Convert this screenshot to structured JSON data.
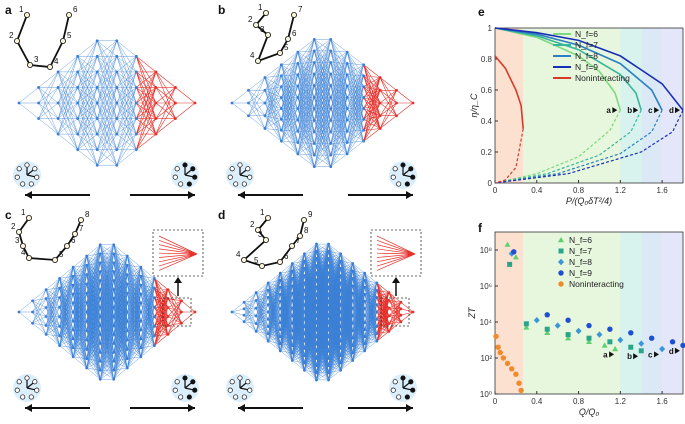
{
  "panels": {
    "a": {
      "label": "a",
      "nodes": [
        "1",
        "2",
        "3",
        "4",
        "5",
        "6"
      ]
    },
    "b": {
      "label": "b",
      "nodes": [
        "1",
        "2",
        "3",
        "4",
        "5",
        "6",
        "7"
      ]
    },
    "c": {
      "label": "c",
      "nodes": [
        "1",
        "2",
        "3",
        "4",
        "5",
        "6",
        "7",
        "8"
      ]
    },
    "d": {
      "label": "d",
      "nodes": [
        "1",
        "2",
        "3",
        "4",
        "5",
        "6",
        "7",
        "8",
        "9"
      ]
    }
  },
  "colors": {
    "network": "#3a7fd5",
    "red": "#e8302a",
    "bg_light": "#dbeefb"
  },
  "chart_data": [
    {
      "panel": "e",
      "type": "line",
      "xlabel": "P/(Q₀δT²/4)",
      "ylabel": "η/η_C",
      "xlim": [
        0,
        1.8
      ],
      "ylim": [
        0,
        1.0
      ],
      "xticks": [
        "0",
        "0.4",
        "0.8",
        "1.2",
        "1.6"
      ],
      "yticks": [
        "0",
        "0.2",
        "0.4",
        "0.6",
        "0.8",
        "1"
      ],
      "series": [
        {
          "name": "N_f=6",
          "color": "#7ed87e",
          "pmax": 1.2,
          "upper": [
            [
              0,
              1.0
            ],
            [
              0.4,
              0.94
            ],
            [
              0.8,
              0.82
            ],
            [
              1.0,
              0.72
            ],
            [
              1.15,
              0.58
            ],
            [
              1.2,
              0.47
            ]
          ],
          "lower": [
            [
              1.2,
              0.47
            ],
            [
              1.1,
              0.34
            ],
            [
              0.8,
              0.17
            ],
            [
              0.4,
              0.06
            ],
            [
              0,
              0.0
            ]
          ]
        },
        {
          "name": "N_f=7",
          "color": "#38b59a",
          "pmax": 1.4,
          "upper": [
            [
              0,
              1.0
            ],
            [
              0.4,
              0.95
            ],
            [
              0.8,
              0.86
            ],
            [
              1.2,
              0.7
            ],
            [
              1.35,
              0.58
            ],
            [
              1.4,
              0.47
            ]
          ],
          "lower": [
            [
              1.4,
              0.47
            ],
            [
              1.3,
              0.33
            ],
            [
              1.0,
              0.18
            ],
            [
              0.5,
              0.06
            ],
            [
              0,
              0.0
            ]
          ]
        },
        {
          "name": "N_f=8",
          "color": "#2c7fc0",
          "pmax": 1.6,
          "upper": [
            [
              0,
              1.0
            ],
            [
              0.4,
              0.96
            ],
            [
              0.8,
              0.89
            ],
            [
              1.2,
              0.77
            ],
            [
              1.5,
              0.6
            ],
            [
              1.6,
              0.47
            ]
          ],
          "lower": [
            [
              1.6,
              0.47
            ],
            [
              1.5,
              0.33
            ],
            [
              1.2,
              0.19
            ],
            [
              0.6,
              0.06
            ],
            [
              0,
              0.0
            ]
          ]
        },
        {
          "name": "N_f=9",
          "color": "#1a2fb8",
          "pmax": 1.8,
          "upper": [
            [
              0,
              1.0
            ],
            [
              0.4,
              0.97
            ],
            [
              0.8,
              0.92
            ],
            [
              1.2,
              0.82
            ],
            [
              1.6,
              0.64
            ],
            [
              1.8,
              0.47
            ]
          ],
          "lower": [
            [
              1.8,
              0.47
            ],
            [
              1.7,
              0.33
            ],
            [
              1.4,
              0.2
            ],
            [
              0.7,
              0.06
            ],
            [
              0,
              0.0
            ]
          ]
        },
        {
          "name": "Noninteracting",
          "color": "#d83a2a",
          "pmax": 0.27,
          "upper": [
            [
              0,
              0.82
            ],
            [
              0.1,
              0.74
            ],
            [
              0.2,
              0.6
            ],
            [
              0.25,
              0.5
            ],
            [
              0.27,
              0.35
            ]
          ],
          "lower": [
            [
              0.27,
              0.35
            ],
            [
              0.2,
              0.1
            ],
            [
              0.1,
              0.02
            ],
            [
              0,
              0.0
            ]
          ]
        }
      ],
      "markers": [
        {
          "label": "a",
          "x": 1.2,
          "y": 0.47
        },
        {
          "label": "b",
          "x": 1.4,
          "y": 0.47
        },
        {
          "label": "c",
          "x": 1.6,
          "y": 0.47
        },
        {
          "label": "d",
          "x": 1.8,
          "y": 0.47
        }
      ]
    },
    {
      "panel": "f",
      "type": "scatter",
      "xlabel": "Q/Q₀",
      "ylabel": "ZT",
      "xlim": [
        0,
        1.8
      ],
      "ylim_log10": [
        0,
        9
      ],
      "xticks": [
        "0",
        "0.4",
        "0.8",
        "1.2",
        "1.6"
      ],
      "yticks": [
        "10⁰",
        "10²",
        "10⁴",
        "10⁶",
        "10⁸"
      ],
      "series": [
        {
          "name": "N_f=6",
          "color": "#5fcf6f",
          "marker": "triangle",
          "points": [
            [
              0.12,
              8.3
            ],
            [
              0.2,
              7.6
            ],
            [
              0.3,
              3.7
            ],
            [
              0.5,
              3.4
            ],
            [
              0.7,
              3.1
            ],
            [
              0.9,
              2.9
            ],
            [
              1.05,
              2.7
            ],
            [
              1.15,
              2.5
            ]
          ]
        },
        {
          "name": "N_f=7",
          "color": "#2aa58a",
          "marker": "square",
          "points": [
            [
              0.14,
              7.2
            ],
            [
              0.3,
              3.9
            ],
            [
              0.5,
              3.6
            ],
            [
              0.7,
              3.3
            ],
            [
              0.9,
              3.1
            ],
            [
              1.1,
              2.9
            ],
            [
              1.3,
              2.6
            ],
            [
              1.4,
              2.4
            ]
          ]
        },
        {
          "name": "N_f=8",
          "color": "#3b95d9",
          "marker": "diamond",
          "points": [
            [
              0.16,
              7.8
            ],
            [
              0.4,
              4.1
            ],
            [
              0.6,
              3.8
            ],
            [
              0.8,
              3.5
            ],
            [
              1.0,
              3.3
            ],
            [
              1.2,
              3.0
            ],
            [
              1.4,
              2.8
            ],
            [
              1.6,
              2.5
            ]
          ]
        },
        {
          "name": "N_f=9",
          "color": "#1e4fd0",
          "marker": "circle",
          "points": [
            [
              0.18,
              7.9
            ],
            [
              0.5,
              4.4
            ],
            [
              0.7,
              4.1
            ],
            [
              0.9,
              3.8
            ],
            [
              1.1,
              3.6
            ],
            [
              1.3,
              3.4
            ],
            [
              1.5,
              3.1
            ],
            [
              1.7,
              2.9
            ],
            [
              1.8,
              2.7
            ]
          ]
        },
        {
          "name": "Noninteracting",
          "color": "#f08a2a",
          "marker": "circle",
          "points": [
            [
              0.01,
              3.2
            ],
            [
              0.03,
              2.6
            ],
            [
              0.05,
              2.3
            ],
            [
              0.08,
              2.0
            ],
            [
              0.12,
              1.7
            ],
            [
              0.16,
              1.4
            ],
            [
              0.2,
              1.1
            ],
            [
              0.23,
              0.6
            ],
            [
              0.25,
              0.2
            ]
          ]
        }
      ],
      "markers": [
        {
          "label": "a",
          "x": 1.15,
          "y": 2.2
        },
        {
          "label": "b",
          "x": 1.38,
          "y": 2.1
        },
        {
          "label": "c",
          "x": 1.58,
          "y": 2.2
        },
        {
          "label": "d",
          "x": 1.78,
          "y": 2.4
        }
      ]
    }
  ]
}
